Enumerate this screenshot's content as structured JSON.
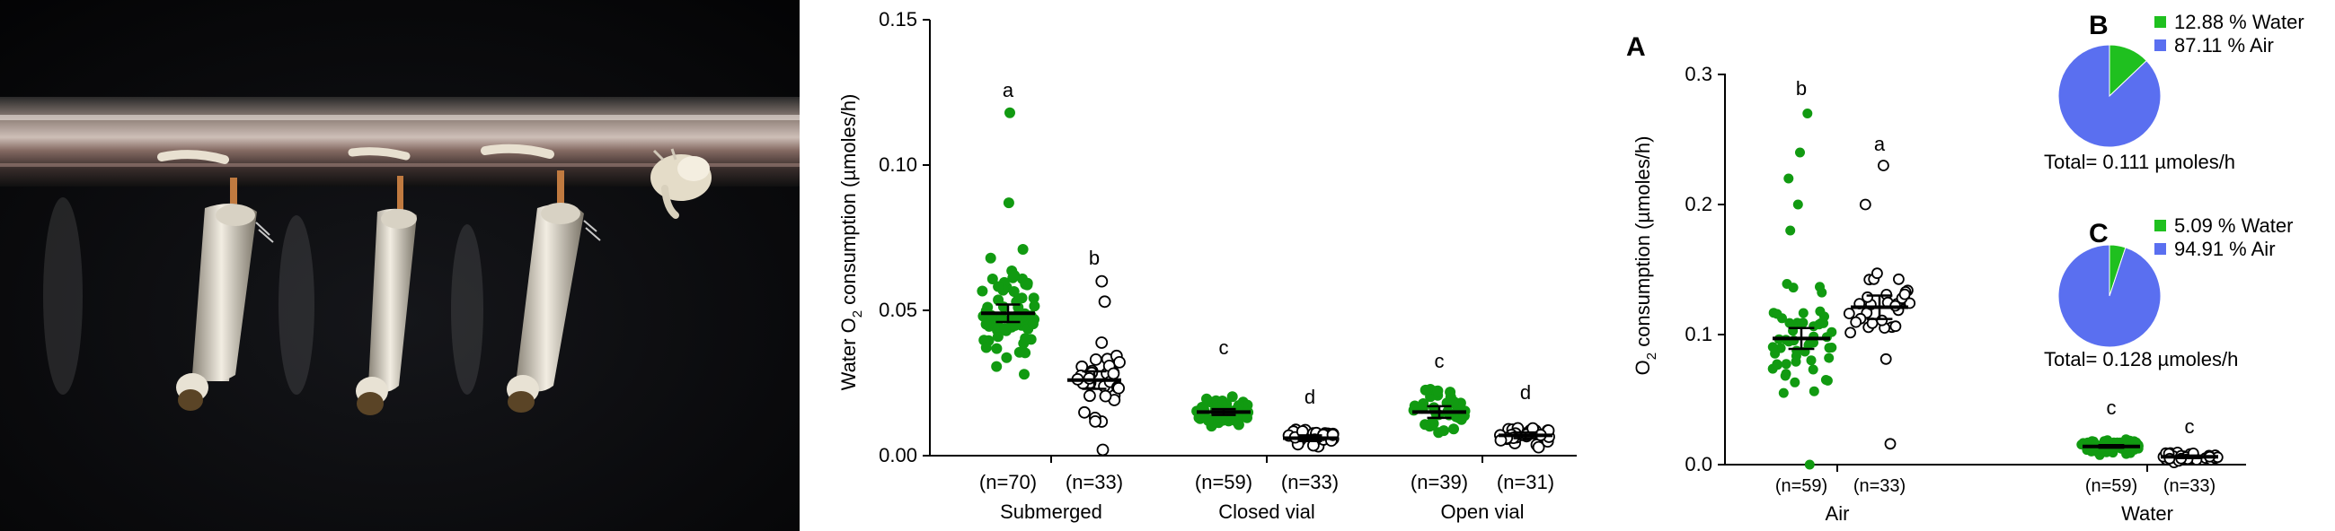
{
  "photo": {
    "subject": "mosquito larvae and pupa hanging from the water surface"
  },
  "colors": {
    "green": "#119a11",
    "open": "#ffffff",
    "pie_air": "#5a6ff0",
    "pie_water": "#1fc01f",
    "axis": "#000000"
  },
  "chart_data": [
    {
      "type": "scatter",
      "ylabel_pre": "Water O",
      "ylabel_sub": "2",
      "ylabel_post": " consumption (µmoles/h)",
      "ylim": [
        0,
        0.15
      ],
      "yticks": [
        "0.00",
        "0.05",
        "0.10",
        "0.15"
      ],
      "groups": [
        "Submerged",
        "Closed vial",
        "Open vial"
      ],
      "series": [
        {
          "group": "Submerged",
          "fill": "green",
          "mean": 0.049,
          "sem": 0.003,
          "letter": "a",
          "n_label": "(n=70)",
          "min": 0.028,
          "max": 0.118,
          "n": 70,
          "extra": [
            0.118,
            0.087,
            0.071,
            0.068
          ]
        },
        {
          "group": "Submerged",
          "fill": "open",
          "mean": 0.026,
          "sem": 0.003,
          "letter": "b",
          "n_label": "(n=33)",
          "min": 0.002,
          "max": 0.06,
          "n": 33,
          "extra": [
            0.06,
            0.053,
            0.002
          ]
        },
        {
          "group": "Closed vial",
          "fill": "green",
          "mean": 0.015,
          "sem": 0.001,
          "letter": "c",
          "n_label": "(n=59)",
          "min": 0.007,
          "max": 0.026,
          "n": 59,
          "extra": []
        },
        {
          "group": "Closed vial",
          "fill": "open",
          "mean": 0.006,
          "sem": 0.001,
          "letter": "d",
          "n_label": "(n=33)",
          "min": 0.001,
          "max": 0.012,
          "n": 33,
          "extra": []
        },
        {
          "group": "Open vial",
          "fill": "green",
          "mean": 0.015,
          "sem": 0.002,
          "letter": "c",
          "n_label": "(n=39)",
          "min": 0.004,
          "max": 0.027,
          "n": 39,
          "extra": []
        },
        {
          "group": "Open vial",
          "fill": "open",
          "mean": 0.007,
          "sem": 0.001,
          "letter": "d",
          "n_label": "(n=31)",
          "min": 0.001,
          "max": 0.016,
          "n": 31,
          "extra": []
        }
      ]
    },
    {
      "type": "scatter",
      "panel_label": "A",
      "ylabel_pre": "O",
      "ylabel_sub": "2",
      "ylabel_post": " consumption  (µmoles/h)",
      "ylim": [
        0,
        0.3
      ],
      "yticks": [
        "0.0",
        "0.1",
        "0.2",
        "0.3"
      ],
      "groups": [
        "Air",
        "Water"
      ],
      "series": [
        {
          "group": "Air",
          "fill": "green",
          "mean": 0.097,
          "sem": 0.008,
          "letter": "b",
          "n_label": "(n=59)",
          "min": 0.0,
          "max": 0.27,
          "n": 59,
          "extra": [
            0.27,
            0.24,
            0.22,
            0.2,
            0.18,
            0.0
          ]
        },
        {
          "group": "Air",
          "fill": "open",
          "mean": 0.121,
          "sem": 0.009,
          "letter": "a",
          "n_label": "(n=33)",
          "min": 0.016,
          "max": 0.23,
          "n": 33,
          "extra": [
            0.23,
            0.2,
            0.016
          ]
        },
        {
          "group": "Water",
          "fill": "green",
          "mean": 0.014,
          "sem": 0.001,
          "letter": "c",
          "n_label": "(n=59)",
          "min": 0.005,
          "max": 0.03,
          "n": 59,
          "extra": []
        },
        {
          "group": "Water",
          "fill": "open",
          "mean": 0.006,
          "sem": 0.001,
          "letter": "c",
          "n_label": "(n=33)",
          "min": 0.0,
          "max": 0.014,
          "n": 33,
          "extra": []
        }
      ]
    },
    {
      "type": "pie",
      "panel_label": "B",
      "slices": [
        {
          "label": "12.88 %  Water",
          "value": 12.88,
          "color": "pie_water"
        },
        {
          "label": "87.11 %  Air",
          "value": 87.11,
          "color": "pie_air"
        }
      ],
      "total": "Total= 0.111 µmoles/h"
    },
    {
      "type": "pie",
      "panel_label": "C",
      "slices": [
        {
          "label": "5.09 %  Water",
          "value": 5.09,
          "color": "pie_water"
        },
        {
          "label": "94.91 %  Air",
          "value": 94.91,
          "color": "pie_air"
        }
      ],
      "total": "Total= 0.128 µmoles/h"
    }
  ]
}
